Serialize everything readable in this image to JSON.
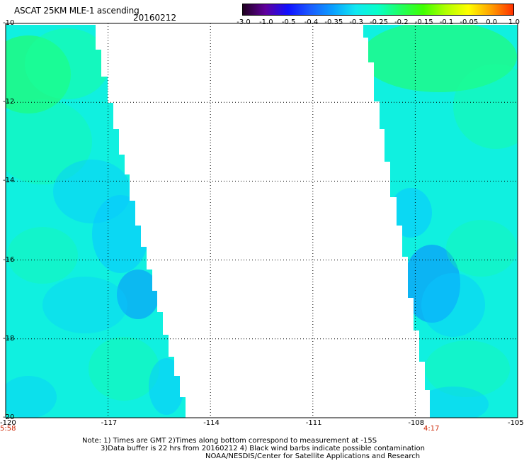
{
  "header": {
    "title": "ASCAT 25KM MLE-1 ascending",
    "date": "20160212"
  },
  "colorbar": {
    "labels": [
      "-3.0",
      "-1.0",
      "-0.5",
      "-0.4",
      "-0.35",
      "-0.3",
      "-0.25",
      "-0.2",
      "-0.15",
      "-0.1",
      "-0.05",
      "0.0",
      "1.0"
    ],
    "colors": [
      "#200020",
      "#60009c",
      "#1010ff",
      "#1a5cff",
      "#0aa0ff",
      "#10e8f2",
      "#08ffc8",
      "#20ff60",
      "#40ff00",
      "#b0ff00",
      "#ffff00",
      "#ffa000",
      "#ff3000"
    ]
  },
  "map": {
    "x_axis": {
      "ticks": [
        "-120",
        "-117",
        "-114",
        "-111",
        "-108",
        "-105"
      ]
    },
    "y_axis": {
      "ticks": [
        "-10",
        "-12",
        "-14",
        "-16",
        "-18",
        "-20"
      ]
    },
    "times": {
      "left": "5:58",
      "right": "4:17"
    },
    "swath_colors": {
      "base": "#10f0e0",
      "green": "#18ff9c",
      "blue": "#08c8ff",
      "deep_blue": "#0a8cff",
      "bright_green": "#28ff50"
    }
  },
  "footer": {
    "line1": "Note: 1) Times are GMT 2)Times along bottom correspond to measurement at -15S",
    "line2": "3)Data buffer is 22 hrs from 20160212 4) Black wind barbs indicate possible contamination",
    "line3": "NOAA/NESDIS/Center for Satellite Applications and Research"
  }
}
